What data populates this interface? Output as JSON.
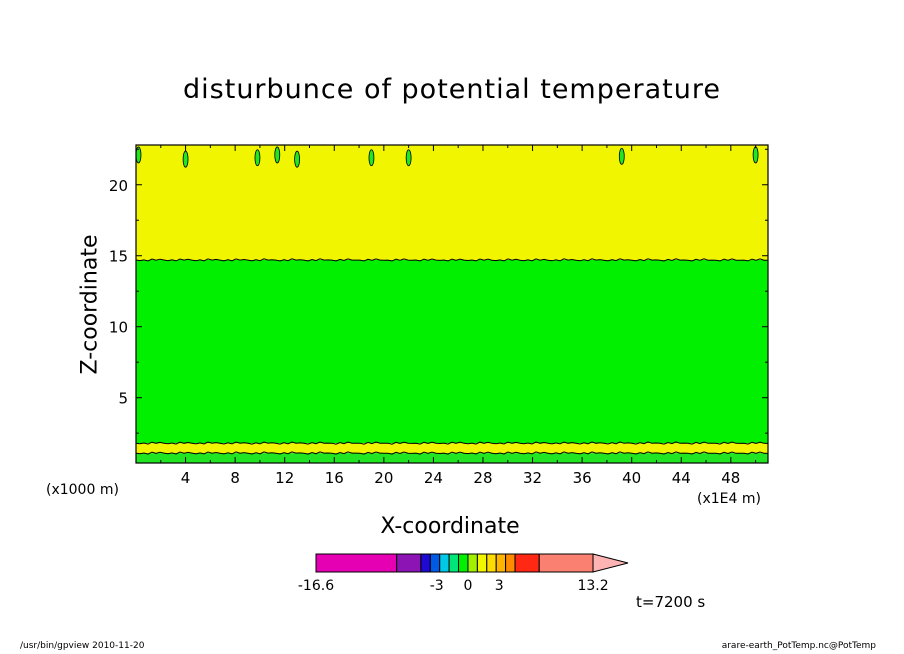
{
  "chart_data": {
    "type": "heatmap",
    "title": "disturbunce of potential temperature",
    "xlabel": "X-coordinate",
    "ylabel": "Z-coordinate",
    "x_unit_left": "(x1000 m)",
    "x_unit_right": "(x1E4 m)",
    "time_label": "t=7200 s",
    "xlim": [
      0,
      51
    ],
    "ylim": [
      0.4,
      22.8
    ],
    "x_ticks": [
      4,
      8,
      12,
      16,
      20,
      24,
      28,
      32,
      36,
      40,
      44,
      48
    ],
    "y_ticks": [
      5,
      10,
      15,
      20
    ],
    "bands": [
      {
        "z_from": 0.4,
        "z_to": 1.1,
        "color": "#22e622"
      },
      {
        "z_from": 1.1,
        "z_to": 1.8,
        "color": "#f2f500"
      },
      {
        "z_from": 1.8,
        "z_to": 14.7,
        "color": "#00f000"
      },
      {
        "z_from": 14.7,
        "z_to": 22.8,
        "color": "#f2f500"
      }
    ],
    "blobs": [
      {
        "x": 0.2,
        "z": 22.1
      },
      {
        "x": 4.0,
        "z": 21.8
      },
      {
        "x": 9.8,
        "z": 21.9
      },
      {
        "x": 11.4,
        "z": 22.1
      },
      {
        "x": 13.0,
        "z": 21.8
      },
      {
        "x": 19.0,
        "z": 21.9
      },
      {
        "x": 22.0,
        "z": 21.9
      },
      {
        "x": 39.2,
        "z": 22.0
      },
      {
        "x": 50.0,
        "z": 22.1
      }
    ],
    "colorbar": {
      "min_label": "-16.6",
      "max_label": "13.2",
      "tick_labels": [
        "-3",
        "0",
        "3"
      ],
      "segments": [
        {
          "color": "#e600b4",
          "weight": 6
        },
        {
          "color": "#8c14b4",
          "weight": 1.8
        },
        {
          "color": "#1e0ad2",
          "weight": 0.7
        },
        {
          "color": "#005ae6",
          "weight": 0.7
        },
        {
          "color": "#00c8e6",
          "weight": 0.7
        },
        {
          "color": "#00e678",
          "weight": 0.7
        },
        {
          "color": "#00f000",
          "weight": 0.7
        },
        {
          "color": "#a0f000",
          "weight": 0.7
        },
        {
          "color": "#f2f500",
          "weight": 0.7
        },
        {
          "color": "#ffdc00",
          "weight": 0.7
        },
        {
          "color": "#ffb400",
          "weight": 0.7
        },
        {
          "color": "#ff8c00",
          "weight": 0.7
        },
        {
          "color": "#ff2814",
          "weight": 1.8
        },
        {
          "color": "#fa8072",
          "weight": 4
        },
        {
          "color": "#ffb4b4",
          "weight": 2.6,
          "arrow": true
        }
      ]
    }
  },
  "footer": {
    "left": "/usr/bin/gpview   2010-11-20",
    "right": "arare-earth_PotTemp.nc@PotTemp"
  }
}
